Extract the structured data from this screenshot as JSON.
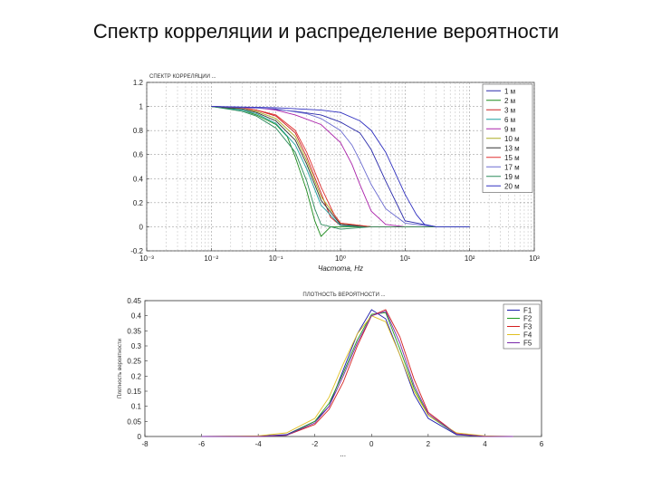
{
  "slide": {
    "title": "Спектр корреляции и распределение вероятности"
  },
  "chart_data": [
    {
      "type": "line",
      "title": "СПЕКТР КОРРЕЛЯЦИИ ...",
      "xlabel": "Частота, Hz",
      "ylabel": "",
      "x_scale": "log",
      "xlim": [
        0.001,
        1000
      ],
      "ylim": [
        -0.2,
        1.2
      ],
      "x_ticks": [
        0.001,
        0.01,
        0.1,
        1,
        10,
        100,
        1000
      ],
      "x_tick_labels": [
        "10⁻³",
        "10⁻²",
        "10⁻¹",
        "10⁰",
        "10¹",
        "10²",
        "10³"
      ],
      "y_ticks": [
        -0.2,
        0,
        0.2,
        0.4,
        0.6,
        0.8,
        1,
        1.2
      ],
      "y_tick_labels": [
        "-0.2",
        "0",
        "0.2",
        "0.4",
        "0.6",
        "0.8",
        "1",
        "1.2"
      ],
      "grid": true,
      "legend_position": "top-right",
      "series": [
        {
          "name": "1 м",
          "color": "#2a2aaa",
          "x": [
            0.01,
            0.05,
            0.2,
            0.5,
            1,
            2,
            3,
            5,
            10,
            30,
            100
          ],
          "y": [
            1,
            0.99,
            0.96,
            0.93,
            0.87,
            0.78,
            0.64,
            0.38,
            0.05,
            0.0,
            0.0
          ]
        },
        {
          "name": "2 м",
          "color": "#1c8a1c",
          "x": [
            0.01,
            0.03,
            0.05,
            0.1,
            0.15,
            0.2,
            0.3,
            0.4,
            0.5,
            0.7,
            1,
            3,
            10,
            30,
            100
          ],
          "y": [
            1,
            0.97,
            0.93,
            0.85,
            0.75,
            0.58,
            0.3,
            0.05,
            -0.08,
            0.0,
            0.0,
            0.0,
            0.0,
            0.0,
            0.0
          ]
        },
        {
          "name": "3 м",
          "color": "#cc2222",
          "x": [
            0.01,
            0.03,
            0.05,
            0.1,
            0.2,
            0.3,
            0.5,
            0.7,
            1,
            3,
            10,
            30,
            100
          ],
          "y": [
            1,
            0.99,
            0.97,
            0.92,
            0.78,
            0.58,
            0.28,
            0.08,
            0.01,
            0.0,
            0.0,
            0.0,
            0.0
          ]
        },
        {
          "name": "6 м",
          "color": "#1aa0a0",
          "x": [
            0.01,
            0.03,
            0.05,
            0.1,
            0.2,
            0.3,
            0.5,
            1,
            3,
            10,
            30,
            100
          ],
          "y": [
            1,
            0.97,
            0.94,
            0.86,
            0.68,
            0.48,
            0.18,
            0.01,
            0.0,
            0.0,
            0.0,
            0.0
          ]
        },
        {
          "name": "9 м",
          "color": "#aa22aa",
          "x": [
            0.01,
            0.05,
            0.1,
            0.2,
            0.5,
            1,
            1.5,
            2,
            3,
            5,
            10,
            30,
            100
          ],
          "y": [
            1,
            0.99,
            0.97,
            0.93,
            0.85,
            0.7,
            0.52,
            0.35,
            0.13,
            0.02,
            0.0,
            0.0,
            0.0
          ]
        },
        {
          "name": "10 м",
          "color": "#aaaa22",
          "x": [
            0.01,
            0.03,
            0.05,
            0.1,
            0.2,
            0.3,
            0.5,
            1,
            3,
            10,
            30,
            100
          ],
          "y": [
            1,
            0.98,
            0.96,
            0.9,
            0.75,
            0.55,
            0.25,
            0.03,
            0.0,
            0.0,
            0.0,
            0.0
          ]
        },
        {
          "name": "13 м",
          "color": "#333333",
          "x": [
            0.01,
            0.03,
            0.05,
            0.1,
            0.2,
            0.3,
            0.5,
            1,
            3,
            10,
            30,
            100
          ],
          "y": [
            1,
            0.98,
            0.95,
            0.88,
            0.72,
            0.52,
            0.22,
            0.02,
            0.0,
            0.0,
            0.0,
            0.0
          ]
        },
        {
          "name": "15 м",
          "color": "#e03030",
          "x": [
            0.01,
            0.03,
            0.05,
            0.1,
            0.2,
            0.3,
            0.5,
            0.8,
            1,
            3,
            10,
            30,
            100
          ],
          "y": [
            1,
            0.99,
            0.97,
            0.93,
            0.8,
            0.62,
            0.33,
            0.1,
            0.03,
            0.0,
            0.0,
            0.0,
            0.0
          ]
        },
        {
          "name": "17 м",
          "color": "#6a6ad0",
          "x": [
            0.01,
            0.1,
            0.3,
            0.5,
            1,
            1.5,
            2,
            3,
            5,
            10,
            30,
            100
          ],
          "y": [
            1,
            0.98,
            0.94,
            0.9,
            0.8,
            0.68,
            0.55,
            0.35,
            0.15,
            0.03,
            0.0,
            0.0
          ]
        },
        {
          "name": "19 м",
          "color": "#2a8a5a",
          "x": [
            0.01,
            0.03,
            0.05,
            0.1,
            0.2,
            0.3,
            0.4,
            0.5,
            1,
            3,
            10,
            30,
            100
          ],
          "y": [
            1,
            0.96,
            0.92,
            0.82,
            0.62,
            0.38,
            0.15,
            0.02,
            -0.02,
            0.0,
            0.0,
            0.0,
            0.0
          ]
        },
        {
          "name": "20 м",
          "color": "#3030c0",
          "x": [
            0.01,
            0.1,
            0.5,
            1,
            2,
            3,
            5,
            7,
            10,
            15,
            20,
            30,
            100
          ],
          "y": [
            1,
            0.99,
            0.97,
            0.95,
            0.88,
            0.8,
            0.62,
            0.45,
            0.27,
            0.1,
            0.02,
            0.0,
            0.0
          ]
        }
      ]
    },
    {
      "type": "line",
      "title": "ПЛОТНОСТЬ ВЕРОЯТНОСТИ ...",
      "xlabel": "...",
      "ylabel": "Плотность вероятности",
      "xlim": [
        -8,
        6
      ],
      "ylim": [
        0,
        0.45
      ],
      "x_ticks": [
        -8,
        -6,
        -4,
        -2,
        0,
        2,
        4,
        6
      ],
      "x_tick_labels": [
        "-8",
        "-6",
        "-4",
        "-2",
        "0",
        "2",
        "4",
        "6"
      ],
      "y_ticks": [
        0,
        0.05,
        0.1,
        0.15,
        0.2,
        0.25,
        0.3,
        0.35,
        0.4,
        0.45
      ],
      "y_tick_labels": [
        "0",
        "0.05",
        "0.1",
        "0.15",
        "0.2",
        "0.25",
        "0.3",
        "0.35",
        "0.4",
        "0.45"
      ],
      "grid": false,
      "legend_position": "top-right",
      "series": [
        {
          "name": "F1",
          "color": "#1a1aaa",
          "x": [
            -6,
            -4,
            -3,
            -2,
            -1.5,
            -1,
            -0.5,
            0,
            0.5,
            1,
            1.5,
            2,
            3,
            4,
            5
          ],
          "y": [
            0,
            0.001,
            0.006,
            0.05,
            0.1,
            0.22,
            0.34,
            0.42,
            0.39,
            0.27,
            0.14,
            0.06,
            0.006,
            0.0,
            0.0
          ]
        },
        {
          "name": "F2",
          "color": "#1f9a1f",
          "x": [
            -6,
            -4,
            -3,
            -2,
            -1.5,
            -1,
            -0.5,
            0,
            0.5,
            1,
            1.5,
            2,
            3,
            4,
            5
          ],
          "y": [
            0,
            0.0,
            0.004,
            0.05,
            0.11,
            0.21,
            0.32,
            0.405,
            0.41,
            0.29,
            0.16,
            0.07,
            0.008,
            0.0,
            0.0
          ]
        },
        {
          "name": "F3",
          "color": "#d42020",
          "x": [
            -6,
            -4,
            -3,
            -2,
            -1.5,
            -1,
            -0.5,
            0,
            0.5,
            1,
            1.5,
            2,
            3,
            4,
            5
          ],
          "y": [
            0,
            0.0,
            0.004,
            0.04,
            0.09,
            0.18,
            0.3,
            0.4,
            0.42,
            0.33,
            0.19,
            0.08,
            0.009,
            0.0,
            0.0
          ]
        },
        {
          "name": "F4",
          "color": "#e0c020",
          "x": [
            -6,
            -4,
            -3,
            -2,
            -1.5,
            -1,
            -0.5,
            0,
            0.5,
            1,
            1.5,
            2,
            3,
            4,
            5
          ],
          "y": [
            0,
            0.002,
            0.012,
            0.06,
            0.13,
            0.24,
            0.34,
            0.4,
            0.38,
            0.27,
            0.15,
            0.07,
            0.012,
            0.002,
            0.0
          ]
        },
        {
          "name": "F5",
          "color": "#7a2aaa",
          "x": [
            -6,
            -4,
            -3,
            -2,
            -1.5,
            -1,
            -0.5,
            0,
            0.5,
            1,
            1.5,
            2,
            3,
            4,
            5
          ],
          "y": [
            0,
            0.0,
            0.004,
            0.045,
            0.1,
            0.2,
            0.31,
            0.4,
            0.415,
            0.31,
            0.17,
            0.075,
            0.008,
            0.0,
            0.0
          ]
        }
      ]
    }
  ]
}
